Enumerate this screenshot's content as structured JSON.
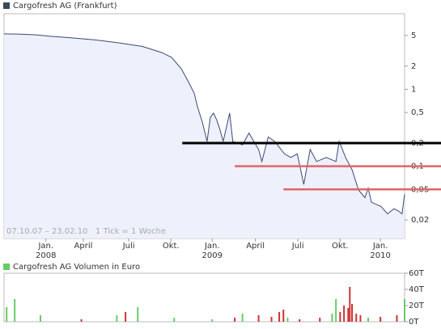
{
  "chart_data": [
    {
      "type": "line",
      "title": "Cargofresh AG (Frankfurt)",
      "annotation": "07.10.07 – 23.02.10   1 Tick = 1 Woche",
      "log_scale": true,
      "color": "#3a4a78",
      "area_color": "#eef0fb",
      "title_icon_color": "#3a4a5a",
      "xlim": [
        0,
        124.3
      ],
      "ylim": [
        0.0115,
        9.6
      ],
      "yticks": [
        5,
        2,
        1,
        {
          "value": 0.5,
          "label": "0,5"
        },
        {
          "value": 0.2,
          "label": "0,2"
        },
        {
          "value": 0.1,
          "label": "0,1"
        },
        {
          "value": 0.05,
          "label": "0,05"
        },
        {
          "value": 0.02,
          "label": "0,02"
        }
      ],
      "xticks": [
        {
          "value": 13,
          "label": "Jan."
        },
        {
          "value": 24.6,
          "label": "April"
        },
        {
          "value": 38.7,
          "label": "Juli"
        },
        {
          "value": 51.8,
          "label": "Okt."
        },
        {
          "value": 64.6,
          "label": "Jan."
        },
        {
          "value": 78,
          "label": "April"
        },
        {
          "value": 91.2,
          "label": "Juli"
        },
        {
          "value": 104.3,
          "label": "Okt."
        },
        {
          "value": 116.8,
          "label": "Jan."
        }
      ],
      "year_labels": [
        {
          "value": 13,
          "label": "2008"
        },
        {
          "value": 64.6,
          "label": "2009"
        },
        {
          "value": 116.8,
          "label": "2010"
        }
      ],
      "levels": [
        {
          "value": 0.2,
          "start": 55.3,
          "color": "#000000"
        },
        {
          "value": 0.1,
          "start": 71.6,
          "color": "#e06666"
        },
        {
          "value": 0.05,
          "start": 86.7,
          "color": "#e06666"
        }
      ],
      "x": [
        0,
        5,
        10,
        14,
        20,
        28,
        36,
        43,
        49,
        52,
        55,
        57,
        59,
        60,
        61.5,
        63,
        64,
        65,
        66,
        67,
        68,
        70,
        71,
        74,
        76,
        79,
        80,
        82,
        84,
        87,
        89,
        91,
        93,
        95,
        97,
        100,
        103,
        104,
        106,
        108,
        110,
        112,
        113,
        114,
        117,
        119,
        121,
        122.5,
        123.5,
        124.3
      ],
      "values": [
        5.25,
        5.2,
        5.1,
        4.9,
        4.7,
        4.4,
        4.0,
        3.6,
        3.0,
        2.6,
        1.85,
        1.3,
        0.89,
        0.6,
        0.38,
        0.21,
        0.43,
        0.49,
        0.4,
        0.3,
        0.21,
        0.49,
        0.21,
        0.19,
        0.27,
        0.165,
        0.115,
        0.24,
        0.21,
        0.145,
        0.13,
        0.145,
        0.058,
        0.165,
        0.115,
        0.13,
        0.115,
        0.21,
        0.13,
        0.09,
        0.049,
        0.039,
        0.052,
        0.034,
        0.03,
        0.024,
        0.028,
        0.026,
        0.024,
        0.043
      ]
    },
    {
      "type": "bar",
      "title": "Cargofresh AG Volumen in Euro",
      "title_icon_color": "#66cc66",
      "xlim": [
        0,
        124.3
      ],
      "ylim": [
        0,
        60
      ],
      "yticks": [
        {
          "value": 60,
          "label": "60T"
        },
        {
          "value": 40,
          "label": "40T"
        },
        {
          "value": 20,
          "label": "20T"
        },
        {
          "value": 0,
          "label": "0T"
        }
      ],
      "series": [
        {
          "color": "#66cc66",
          "x": [
            0.8,
            3.3,
            11.3,
            35,
            41.5,
            52.8,
            64.6,
            74,
            88,
            101.8,
            103,
            113,
            124.3
          ],
          "values": [
            18,
            28,
            8,
            8,
            18,
            5,
            3,
            10,
            5,
            10,
            28,
            5,
            28
          ]
        },
        {
          "color": "#cc3333",
          "x": [
            24,
            37.7,
            71.6,
            79,
            83,
            85.4,
            86.7,
            91.7,
            98,
            104.3,
            105.5,
            106.8,
            107.3,
            108,
            109.3,
            110.6,
            116.8,
            121.9
          ],
          "values": [
            3,
            12,
            5,
            8,
            6,
            12,
            15,
            3,
            5,
            12,
            20,
            17,
            43,
            22,
            10,
            8,
            6,
            8
          ]
        }
      ]
    }
  ]
}
